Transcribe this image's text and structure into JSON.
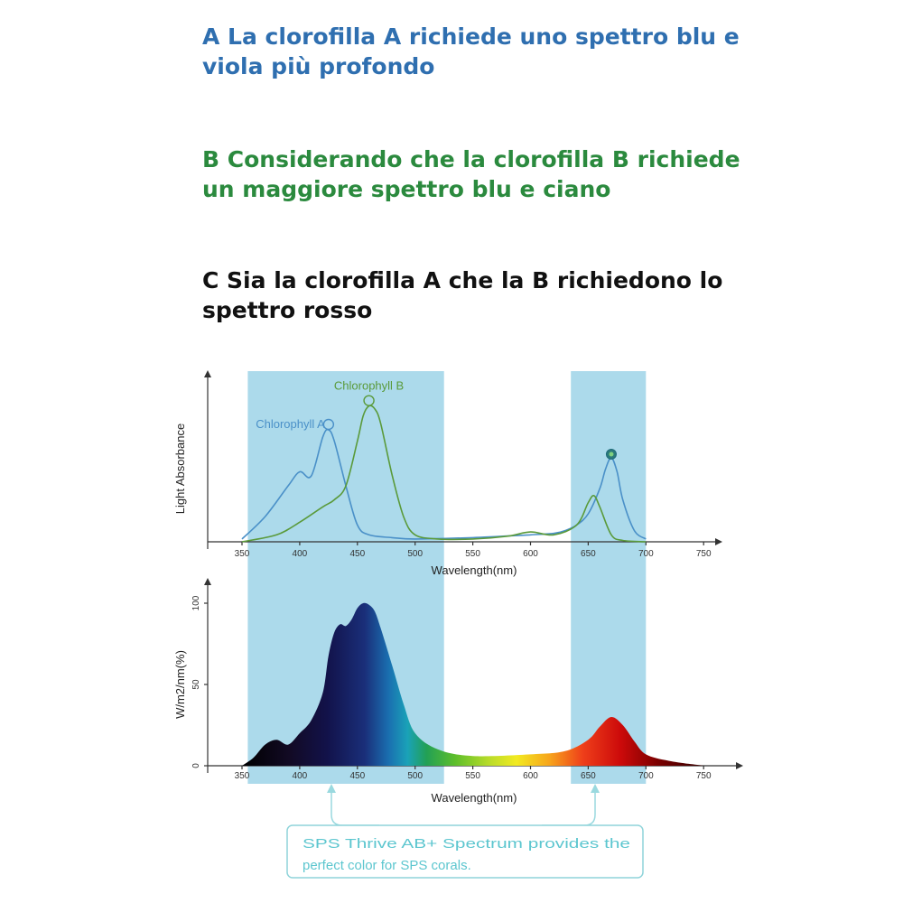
{
  "headings": {
    "a": "A La clorofilla A richiede uno spettro blu e viola più profondo",
    "b": "B Considerando che la clorofilla B richiede un maggiore spettro blu e ciano",
    "c": "C Sia la clorofilla A che la B richiedono lo spettro rosso"
  },
  "colors": {
    "heading_a": "#2f6fb0",
    "heading_b": "#2b8a3e",
    "heading_c": "#111111",
    "highlight_band": "#a8d8ea",
    "chlorophyll_a": "#4a90c8",
    "chlorophyll_b": "#5a9a3a",
    "callout": "#5cc6cf"
  },
  "callout": {
    "line1": "SPS Thrive AB+ Spectrum provides the",
    "line2": "perfect color for SPS corals."
  },
  "chart_data": [
    {
      "type": "line",
      "title": "",
      "xlabel": "Wavelength(nm)",
      "ylabel": "Light Absorbance",
      "xlim": [
        350,
        760
      ],
      "x_ticks": [
        350,
        400,
        450,
        500,
        550,
        600,
        650,
        700,
        750
      ],
      "y_ticks": [],
      "highlight_bands": [
        [
          355,
          525
        ],
        [
          635,
          700
        ]
      ],
      "series": [
        {
          "name": "Chlorophyll A",
          "x": [
            350,
            370,
            390,
            400,
            410,
            420,
            425,
            430,
            440,
            450,
            460,
            480,
            500,
            550,
            600,
            620,
            630,
            640,
            650,
            660,
            665,
            670,
            675,
            680,
            690,
            700
          ],
          "y": [
            0.02,
            0.18,
            0.4,
            0.5,
            0.47,
            0.75,
            0.8,
            0.72,
            0.4,
            0.12,
            0.05,
            0.03,
            0.02,
            0.03,
            0.05,
            0.06,
            0.08,
            0.12,
            0.2,
            0.38,
            0.52,
            0.6,
            0.5,
            0.3,
            0.08,
            0.02
          ]
        },
        {
          "name": "Chlorophyll B",
          "x": [
            350,
            380,
            400,
            420,
            430,
            440,
            450,
            455,
            460,
            465,
            470,
            480,
            490,
            500,
            520,
            550,
            580,
            600,
            620,
            640,
            650,
            655,
            660,
            670,
            680,
            700
          ],
          "y": [
            0.0,
            0.05,
            0.14,
            0.25,
            0.3,
            0.4,
            0.72,
            0.9,
            0.97,
            0.95,
            0.85,
            0.48,
            0.18,
            0.05,
            0.02,
            0.02,
            0.04,
            0.07,
            0.05,
            0.12,
            0.28,
            0.33,
            0.25,
            0.05,
            0.01,
            0.0
          ]
        }
      ]
    },
    {
      "type": "area",
      "title": "",
      "xlabel": "Wavelength(nm)",
      "ylabel": "W/m2/nm(%)",
      "xlim": [
        350,
        760
      ],
      "ylim": [
        0,
        100
      ],
      "x_ticks": [
        350,
        400,
        450,
        500,
        550,
        600,
        650,
        700,
        750
      ],
      "y_ticks": [
        0,
        50,
        100
      ],
      "highlight_bands": [
        [
          355,
          525
        ],
        [
          635,
          700
        ]
      ],
      "series": [
        {
          "name": "",
          "x": [
            350,
            360,
            370,
            380,
            390,
            400,
            410,
            420,
            425,
            430,
            435,
            440,
            445,
            450,
            455,
            460,
            465,
            470,
            480,
            490,
            500,
            520,
            550,
            600,
            630,
            650,
            660,
            670,
            680,
            690,
            700,
            720,
            750
          ],
          "y": [
            0,
            5,
            13,
            16,
            13,
            20,
            28,
            45,
            68,
            82,
            87,
            86,
            90,
            97,
            100,
            99,
            95,
            85,
            62,
            38,
            20,
            10,
            6,
            7,
            9,
            16,
            24,
            30,
            25,
            15,
            7,
            3,
            0
          ]
        }
      ]
    }
  ]
}
